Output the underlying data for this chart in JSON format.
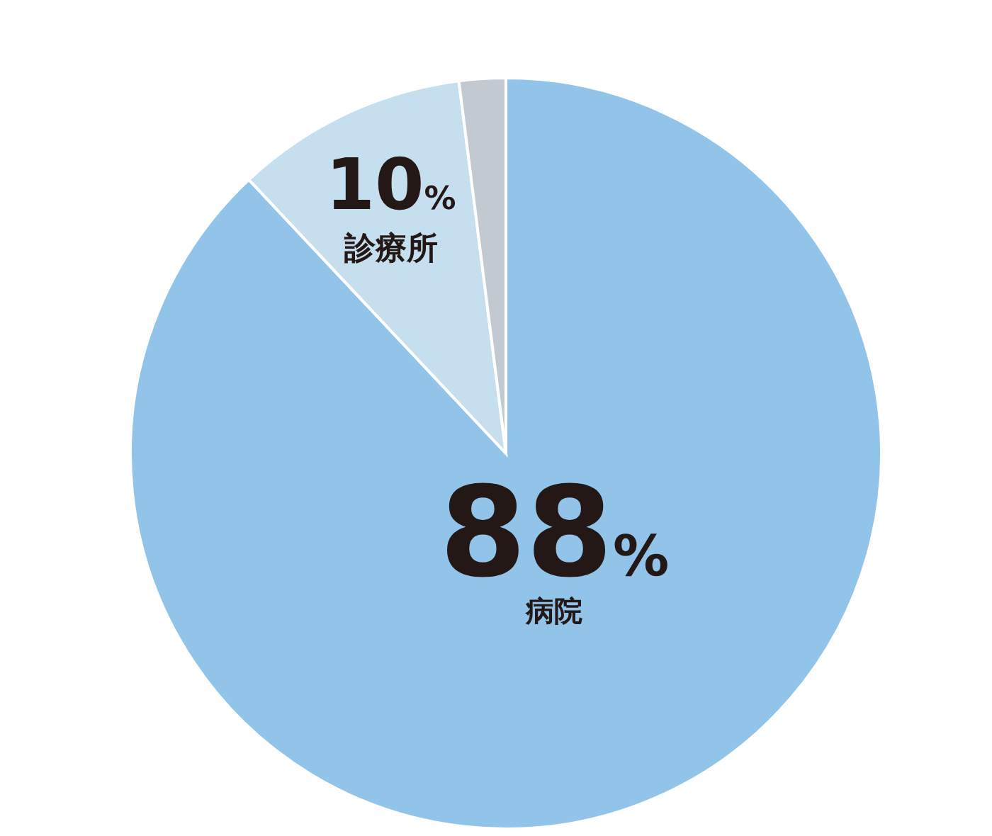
{
  "chart_data": {
    "type": "pie",
    "categories": [
      "病院",
      "診療所",
      null
    ],
    "values": [
      88,
      10,
      2
    ],
    "colors": [
      "#92c4ea",
      "#c6dfee",
      "#c3c9d1"
    ],
    "value_labels": [
      "88%",
      "10%",
      null
    ],
    "legend": false
  }
}
